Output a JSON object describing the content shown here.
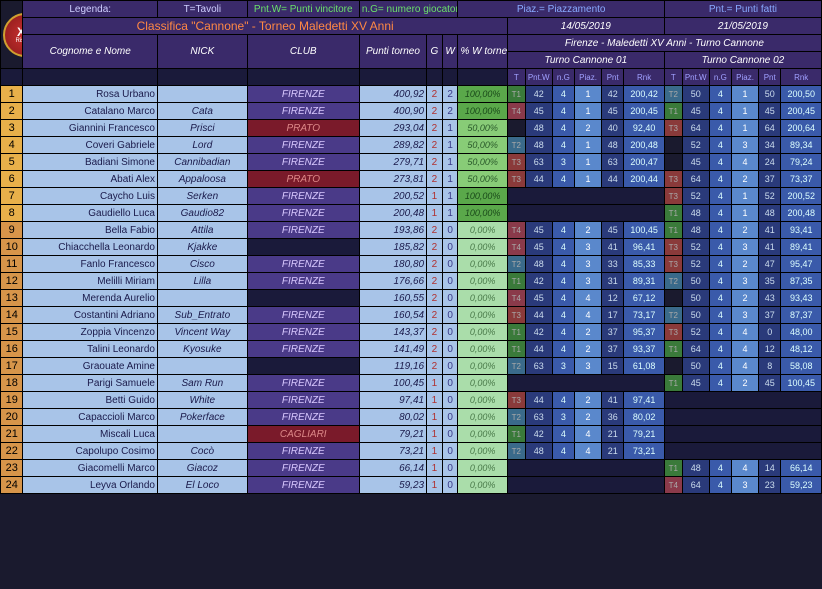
{
  "legend": {
    "t": "T=Tavoli",
    "pw": "Pnt.W= Punti vincitore",
    "ng": "n.G= numero giocatori",
    "piaz": "Piaz.= Piazzamento",
    "pnt": "Pnt.= Punti fatti"
  },
  "title": "Classifica \"Cannone\" - Torneo Maledetti XV Anni",
  "dates": [
    "14/05/2019",
    "21/05/2019"
  ],
  "event": "Firenze - Maledetti XV Anni - Turno Cannone",
  "turns": [
    "Turno Cannone 01",
    "Turno Cannone 02"
  ],
  "cols": {
    "name": "Cognome e Nome",
    "nick": "NICK",
    "club": "CLUB",
    "pt": "Punti torneo",
    "g": "G",
    "w": "W",
    "pct": "% W torneo"
  },
  "tcols": [
    "T",
    "Pnt.W",
    "n.G",
    "Piaz.",
    "Pnt",
    "Rnk"
  ],
  "rows": [
    {
      "r": 1,
      "n": "Rosa Urbano",
      "k": "",
      "c": "FIRENZE",
      "ct": "db",
      "p": "400,92",
      "g": 2,
      "w": 2,
      "pc": "100,00%",
      "t1": {
        "t": "T1",
        "pw": 42,
        "ng": 4,
        "pz": 1,
        "pn": 42,
        "rk": "200,42"
      },
      "t2": {
        "t": "T2",
        "pw": 50,
        "ng": 4,
        "pz": 1,
        "pn": 50,
        "rk": "200,50"
      }
    },
    {
      "r": 2,
      "n": "Catalano Marco",
      "k": "Cata",
      "c": "FIRENZE",
      "ct": "db",
      "p": "400,90",
      "g": 2,
      "w": 2,
      "pc": "100,00%",
      "t1": {
        "t": "T4",
        "pw": 45,
        "ng": 4,
        "pz": 1,
        "pn": 45,
        "rk": "200,45"
      },
      "t2": {
        "t": "T1",
        "pw": 45,
        "ng": 4,
        "pz": 1,
        "pn": 45,
        "rk": "200,45"
      }
    },
    {
      "r": 3,
      "n": "Giannini Francesco",
      "k": "Prisci",
      "c": "PRATO",
      "ct": "dr",
      "p": "293,04",
      "g": 2,
      "w": 1,
      "pc": "50,00%",
      "t1": {
        "t": "",
        "pw": 48,
        "ng": 4,
        "pz": 2,
        "pn": 40,
        "rk": "92,40"
      },
      "t2": {
        "t": "T3",
        "pw": 64,
        "ng": 4,
        "pz": 1,
        "pn": 64,
        "rk": "200,64"
      }
    },
    {
      "r": 4,
      "n": "Coveri Gabriele",
      "k": "Lord",
      "c": "FIRENZE",
      "ct": "db",
      "p": "289,82",
      "g": 2,
      "w": 1,
      "pc": "50,00%",
      "t1": {
        "t": "T2",
        "pw": 48,
        "ng": 4,
        "pz": 1,
        "pn": 48,
        "rk": "200,48"
      },
      "t2": {
        "t": "",
        "pw": 52,
        "ng": 4,
        "pz": 3,
        "pn": 34,
        "rk": "89,34"
      }
    },
    {
      "r": 5,
      "n": "Badiani Simone",
      "k": "Cannibadian",
      "c": "FIRENZE",
      "ct": "db",
      "p": "279,71",
      "g": 2,
      "w": 1,
      "pc": "50,00%",
      "t1": {
        "t": "T3",
        "pw": 63,
        "ng": 3,
        "pz": 1,
        "pn": 63,
        "rk": "200,47"
      },
      "t2": {
        "t": "",
        "pw": 45,
        "ng": 4,
        "pz": 4,
        "pn": 24,
        "rk": "79,24"
      }
    },
    {
      "r": 6,
      "n": "Abati Alex",
      "k": "Appaloosa",
      "c": "PRATO",
      "ct": "dr",
      "p": "273,81",
      "g": 2,
      "w": 1,
      "pc": "50,00%",
      "t1": {
        "t": "T3",
        "pw": 44,
        "ng": 4,
        "pz": 1,
        "pn": 44,
        "rk": "200,44"
      },
      "t2": {
        "t": "T3",
        "pw": 64,
        "ng": 4,
        "pz": 2,
        "pn": 37,
        "rk": "73,37"
      }
    },
    {
      "r": 7,
      "n": "Caycho Luis",
      "k": "Serken",
      "c": "FIRENZE",
      "ct": "db",
      "p": "200,52",
      "g": 1,
      "w": 1,
      "pc": "100,00%",
      "t1": null,
      "t2": {
        "t": "T3",
        "pw": 52,
        "ng": 4,
        "pz": 1,
        "pn": 52,
        "rk": "200,52"
      }
    },
    {
      "r": 8,
      "n": "Gaudiello Luca",
      "k": "Gaudio82",
      "c": "FIRENZE",
      "ct": "db",
      "p": "200,48",
      "g": 1,
      "w": 1,
      "pc": "100,00%",
      "t1": null,
      "t2": {
        "t": "T1",
        "pw": 48,
        "ng": 4,
        "pz": 1,
        "pn": 48,
        "rk": "200,48"
      }
    },
    {
      "r": 9,
      "n": "Bella Fabio",
      "k": "Attila",
      "c": "FIRENZE",
      "ct": "db",
      "p": "193,86",
      "g": 2,
      "w": 0,
      "pc": "0,00%",
      "t1": {
        "t": "T4",
        "pw": 45,
        "ng": 4,
        "pz": 2,
        "pn": 45,
        "rk": "100,45"
      },
      "t2": {
        "t": "T1",
        "pw": 48,
        "ng": 4,
        "pz": 2,
        "pn": 41,
        "rk": "93,41"
      }
    },
    {
      "r": 10,
      "n": "Chiacchella Leonardo",
      "k": "Kjakke",
      "c": "",
      "ct": "bk",
      "p": "185,82",
      "g": 2,
      "w": 0,
      "pc": "0,00%",
      "t1": {
        "t": "T4",
        "pw": 45,
        "ng": 4,
        "pz": 3,
        "pn": 41,
        "rk": "96,41"
      },
      "t2": {
        "t": "T3",
        "pw": 52,
        "ng": 4,
        "pz": 3,
        "pn": 41,
        "rk": "89,41"
      }
    },
    {
      "r": 11,
      "n": "Fanlo Francesco",
      "k": "Cisco",
      "c": "FIRENZE",
      "ct": "db",
      "p": "180,80",
      "g": 2,
      "w": 0,
      "pc": "0,00%",
      "t1": {
        "t": "T2",
        "pw": 48,
        "ng": 4,
        "pz": 3,
        "pn": 33,
        "rk": "85,33"
      },
      "t2": {
        "t": "T3",
        "pw": 52,
        "ng": 4,
        "pz": 2,
        "pn": 47,
        "rk": "95,47"
      }
    },
    {
      "r": 12,
      "n": "Melilli Miriam",
      "k": "Lilla",
      "c": "FIRENZE",
      "ct": "db",
      "p": "176,66",
      "g": 2,
      "w": 0,
      "pc": "0,00%",
      "t1": {
        "t": "T1",
        "pw": 42,
        "ng": 4,
        "pz": 3,
        "pn": 31,
        "rk": "89,31"
      },
      "t2": {
        "t": "T2",
        "pw": 50,
        "ng": 4,
        "pz": 3,
        "pn": 35,
        "rk": "87,35"
      }
    },
    {
      "r": 13,
      "n": "Merenda Aurelio",
      "k": "",
      "c": "",
      "ct": "bk",
      "p": "160,55",
      "g": 2,
      "w": 0,
      "pc": "0,00%",
      "t1": {
        "t": "T4",
        "pw": 45,
        "ng": 4,
        "pz": 4,
        "pn": 12,
        "rk": "67,12"
      },
      "t2": {
        "t": "",
        "pw": 50,
        "ng": 4,
        "pz": 2,
        "pn": 43,
        "rk": "93,43"
      }
    },
    {
      "r": 14,
      "n": "Costantini Adriano",
      "k": "Sub_Entrato",
      "c": "FIRENZE",
      "ct": "db",
      "p": "160,54",
      "g": 2,
      "w": 0,
      "pc": "0,00%",
      "t1": {
        "t": "T3",
        "pw": 44,
        "ng": 4,
        "pz": 4,
        "pn": 17,
        "rk": "73,17"
      },
      "t2": {
        "t": "T2",
        "pw": 50,
        "ng": 4,
        "pz": 3,
        "pn": 37,
        "rk": "87,37"
      }
    },
    {
      "r": 15,
      "n": "Zoppia Vincenzo",
      "k": "Vincent Way",
      "c": "FIRENZE",
      "ct": "db",
      "p": "143,37",
      "g": 2,
      "w": 0,
      "pc": "0,00%",
      "t1": {
        "t": "T1",
        "pw": 42,
        "ng": 4,
        "pz": 2,
        "pn": 37,
        "rk": "95,37"
      },
      "t2": {
        "t": "T3",
        "pw": 52,
        "ng": 4,
        "pz": 4,
        "pn": 0,
        "rk": "48,00"
      }
    },
    {
      "r": 16,
      "n": "Talini Leonardo",
      "k": "Kyosuke",
      "c": "FIRENZE",
      "ct": "db",
      "p": "141,49",
      "g": 2,
      "w": 0,
      "pc": "0,00%",
      "t1": {
        "t": "T1",
        "pw": 44,
        "ng": 4,
        "pz": 2,
        "pn": 37,
        "rk": "93,37"
      },
      "t2": {
        "t": "T1",
        "pw": 64,
        "ng": 4,
        "pz": 4,
        "pn": 12,
        "rk": "48,12"
      }
    },
    {
      "r": 17,
      "n": "Graouate Amine",
      "k": "",
      "c": "",
      "ct": "bk",
      "p": "119,16",
      "g": 2,
      "w": 0,
      "pc": "0,00%",
      "t1": {
        "t": "T2",
        "pw": 63,
        "ng": 3,
        "pz": 3,
        "pn": 15,
        "rk": "61,08"
      },
      "t2": {
        "t": "",
        "pw": 50,
        "ng": 4,
        "pz": 4,
        "pn": 8,
        "rk": "58,08"
      }
    },
    {
      "r": 18,
      "n": "Parigi Samuele",
      "k": "Sam Run",
      "c": "FIRENZE",
      "ct": "db",
      "p": "100,45",
      "g": 1,
      "w": 0,
      "pc": "0,00%",
      "t1": null,
      "t2": {
        "t": "T1",
        "pw": 45,
        "ng": 4,
        "pz": 2,
        "pn": 45,
        "rk": "100,45"
      }
    },
    {
      "r": 19,
      "n": "Betti Guido",
      "k": "White",
      "c": "FIRENZE",
      "ct": "db",
      "p": "97,41",
      "g": 1,
      "w": 0,
      "pc": "0,00%",
      "t1": {
        "t": "T3",
        "pw": 44,
        "ng": 4,
        "pz": 2,
        "pn": 41,
        "rk": "97,41"
      },
      "t2": null
    },
    {
      "r": 20,
      "n": "Capaccioli Marco",
      "k": "Pokerface",
      "c": "FIRENZE",
      "ct": "db",
      "p": "80,02",
      "g": 1,
      "w": 0,
      "pc": "0,00%",
      "t1": {
        "t": "T2",
        "pw": 63,
        "ng": 3,
        "pz": 2,
        "pn": 36,
        "rk": "80,02"
      },
      "t2": null
    },
    {
      "r": 21,
      "n": "Miscali Luca",
      "k": "",
      "c": "CAGLIARI",
      "ct": "dr",
      "p": "79,21",
      "g": 1,
      "w": 0,
      "pc": "0,00%",
      "t1": {
        "t": "T1",
        "pw": 42,
        "ng": 4,
        "pz": 4,
        "pn": 21,
        "rk": "79,21"
      },
      "t2": null
    },
    {
      "r": 22,
      "n": "Capolupo Cosimo",
      "k": "Cocò",
      "c": "FIRENZE",
      "ct": "db",
      "p": "73,21",
      "g": 1,
      "w": 0,
      "pc": "0,00%",
      "t1": {
        "t": "T2",
        "pw": 48,
        "ng": 4,
        "pz": 4,
        "pn": 21,
        "rk": "73,21"
      },
      "t2": null
    },
    {
      "r": 23,
      "n": "Giacomelli Marco",
      "k": "Giacoz",
      "c": "FIRENZE",
      "ct": "db",
      "p": "66,14",
      "g": 1,
      "w": 0,
      "pc": "0,00%",
      "t1": null,
      "t2": {
        "t": "T1",
        "pw": 48,
        "ng": 4,
        "pz": 4,
        "pn": 14,
        "rk": "66,14"
      }
    },
    {
      "r": 24,
      "n": "Leyva Orlando",
      "k": "El Loco",
      "c": "FIRENZE",
      "ct": "db",
      "p": "59,23",
      "g": 1,
      "w": 0,
      "pc": "0,00%",
      "t1": null,
      "t2": {
        "t": "T4",
        "pw": 64,
        "ng": 4,
        "pz": 3,
        "pn": 23,
        "rk": "59,23"
      }
    }
  ]
}
